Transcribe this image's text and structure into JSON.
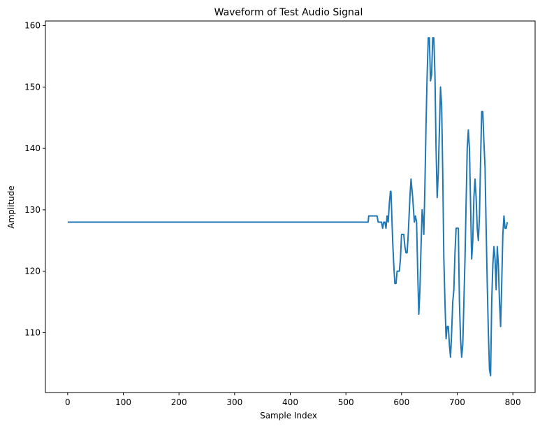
{
  "chart_data": {
    "type": "line",
    "title": "Waveform of Test Audio Signal",
    "xlabel": "Sample Index",
    "ylabel": "Amplitude",
    "xlim": [
      -40,
      840
    ],
    "ylim": [
      100.25,
      160.75
    ],
    "xticks": [
      0,
      100,
      200,
      300,
      400,
      500,
      600,
      700,
      800
    ],
    "yticks": [
      110,
      120,
      130,
      140,
      150,
      160
    ],
    "grid": false,
    "line_color": "#1f77b4",
    "series": [
      {
        "points": [
          [
            0,
            128
          ],
          [
            540,
            128
          ],
          [
            541,
            129
          ],
          [
            556,
            129
          ],
          [
            558,
            128
          ],
          [
            564,
            128
          ],
          [
            566,
            127
          ],
          [
            568,
            128
          ],
          [
            570,
            128
          ],
          [
            572,
            127
          ],
          [
            574,
            129
          ],
          [
            576,
            128
          ],
          [
            578,
            131
          ],
          [
            580,
            133
          ],
          [
            581,
            133
          ],
          [
            584,
            125
          ],
          [
            586,
            121
          ],
          [
            588,
            118
          ],
          [
            590,
            118
          ],
          [
            592,
            120
          ],
          [
            596,
            120
          ],
          [
            598,
            122
          ],
          [
            600,
            126
          ],
          [
            604,
            126
          ],
          [
            606,
            124
          ],
          [
            608,
            123
          ],
          [
            610,
            123
          ],
          [
            612,
            126
          ],
          [
            615,
            132
          ],
          [
            617,
            135
          ],
          [
            620,
            132
          ],
          [
            623,
            128
          ],
          [
            625,
            129
          ],
          [
            627,
            128
          ],
          [
            629,
            120
          ],
          [
            631,
            113
          ],
          [
            633,
            117
          ],
          [
            635,
            124
          ],
          [
            637,
            130
          ],
          [
            639,
            128
          ],
          [
            640,
            126
          ],
          [
            642,
            134
          ],
          [
            644,
            144
          ],
          [
            646,
            152
          ],
          [
            648,
            158
          ],
          [
            650,
            158
          ],
          [
            652,
            151
          ],
          [
            654,
            152
          ],
          [
            656,
            158
          ],
          [
            658,
            158
          ],
          [
            660,
            152
          ],
          [
            662,
            140
          ],
          [
            664,
            132
          ],
          [
            666,
            136
          ],
          [
            668,
            143
          ],
          [
            670,
            150
          ],
          [
            672,
            147
          ],
          [
            674,
            136
          ],
          [
            676,
            122
          ],
          [
            678,
            115
          ],
          [
            680,
            109
          ],
          [
            682,
            111
          ],
          [
            684,
            111
          ],
          [
            686,
            108
          ],
          [
            688,
            106
          ],
          [
            690,
            110
          ],
          [
            692,
            115
          ],
          [
            694,
            117
          ],
          [
            696,
            123
          ],
          [
            698,
            127
          ],
          [
            700,
            127
          ],
          [
            702,
            127
          ],
          [
            704,
            115
          ],
          [
            706,
            109
          ],
          [
            708,
            106
          ],
          [
            710,
            108
          ],
          [
            712,
            115
          ],
          [
            714,
            122
          ],
          [
            716,
            131
          ],
          [
            718,
            140
          ],
          [
            720,
            143
          ],
          [
            722,
            140
          ],
          [
            724,
            131
          ],
          [
            726,
            122
          ],
          [
            728,
            125
          ],
          [
            730,
            132
          ],
          [
            732,
            135
          ],
          [
            734,
            132
          ],
          [
            736,
            127
          ],
          [
            738,
            125
          ],
          [
            740,
            129
          ],
          [
            742,
            138
          ],
          [
            744,
            146
          ],
          [
            746,
            146
          ],
          [
            748,
            141
          ],
          [
            750,
            137
          ],
          [
            752,
            127
          ],
          [
            754,
            118
          ],
          [
            756,
            110
          ],
          [
            758,
            104
          ],
          [
            760,
            103
          ],
          [
            762,
            115
          ],
          [
            764,
            121
          ],
          [
            766,
            124
          ],
          [
            768,
            122
          ],
          [
            770,
            117
          ],
          [
            772,
            124
          ],
          [
            774,
            121
          ],
          [
            776,
            115
          ],
          [
            778,
            111
          ],
          [
            780,
            118
          ],
          [
            782,
            126
          ],
          [
            784,
            129
          ],
          [
            786,
            127
          ],
          [
            788,
            127
          ],
          [
            790,
            128
          ]
        ]
      }
    ]
  }
}
